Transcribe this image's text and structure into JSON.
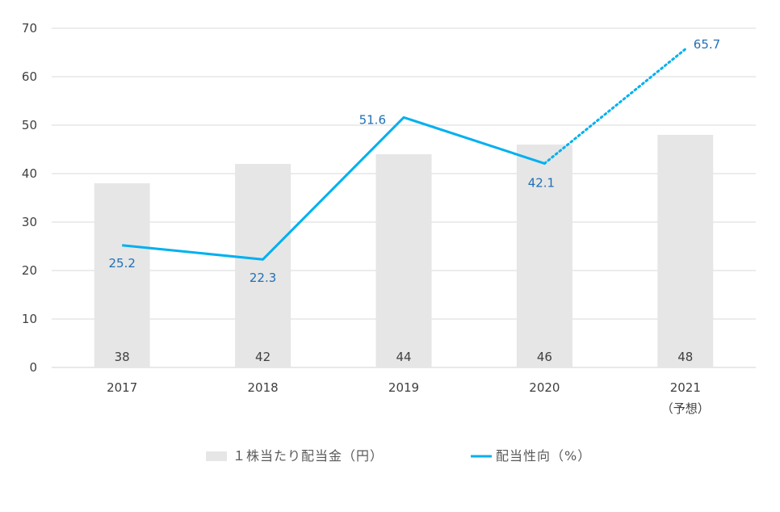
{
  "chart_data": {
    "type": "bar",
    "categories": [
      "2017",
      "2018",
      "2019",
      "2020",
      "2021"
    ],
    "category_sublabels": [
      "",
      "",
      "",
      "",
      "（予想）"
    ],
    "ylim": [
      0,
      70
    ],
    "yticks": [
      0,
      10,
      20,
      30,
      40,
      50,
      60,
      70
    ],
    "grid": true,
    "legend_position": "bottom",
    "series": [
      {
        "name": "１株当たり配当金（円）",
        "type": "bar",
        "values": [
          38,
          42,
          44,
          46,
          48
        ],
        "color": "#e6e6e6"
      },
      {
        "name": "配当性向（%）",
        "type": "line",
        "values": [
          25.2,
          22.3,
          51.6,
          42.1,
          65.7
        ],
        "color": "#00b0f0",
        "dotted_from_index": 3
      }
    ]
  }
}
